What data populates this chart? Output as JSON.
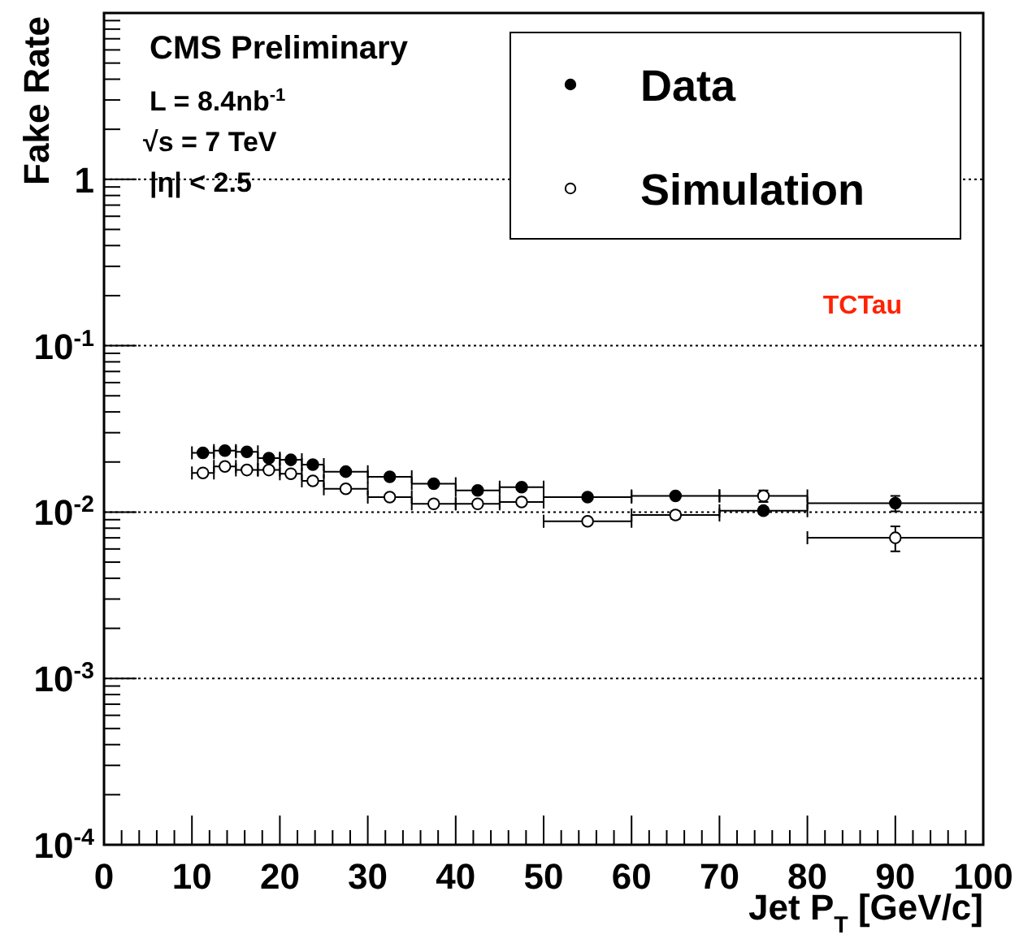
{
  "chart_data": {
    "type": "scatter",
    "xlabel": "Jet P$_{T}$ [GeV/c]",
    "ylabel": "Fake Rate",
    "log": "y",
    "xlim": [
      0,
      100
    ],
    "ylim": [
      0.0001,
      10
    ],
    "xticks": [
      0,
      10,
      20,
      30,
      40,
      50,
      60,
      70,
      80,
      90,
      100
    ],
    "yticks": [
      {
        "value": 0.0001,
        "label": "10$^{-4}$"
      },
      {
        "value": 0.001,
        "label": "10$^{-3}$"
      },
      {
        "value": 0.01,
        "label": "10$^{-2}$"
      },
      {
        "value": 0.1,
        "label": "10$^{-1}$"
      },
      1,
      {
        "value": 10,
        "label": null
      }
    ],
    "grid": "y",
    "legend": "top right",
    "marker": "circle",
    "x": [
      11.25,
      13.75,
      16.25,
      18.75,
      21.25,
      23.75,
      27.5,
      32.5,
      37.5,
      42.5,
      47.5,
      55,
      65,
      75,
      90
    ],
    "series": [
      {
        "name": "Data",
        "color": "#000000",
        "xerrors": [
          1.25,
          1.25,
          1.25,
          1.25,
          1.25,
          1.25,
          2.5,
          2.5,
          2.5,
          2.5,
          2.5,
          5,
          5,
          5,
          10
        ],
        "values": [
          0.0227,
          0.0234,
          0.023,
          0.0211,
          0.0206,
          0.0193,
          0.0175,
          0.0163,
          0.0148,
          0.0135,
          0.0141,
          0.0123,
          0.0125,
          0.0102,
          0.0113
        ],
        "errors": [
          null,
          null,
          null,
          null,
          null,
          null,
          null,
          null,
          null,
          null,
          null,
          null,
          null,
          0.0005,
          0.0012
        ]
      },
      {
        "name": "Simulation",
        "color": "#ffffff",
        "xerrors": [
          1.25,
          1.25,
          1.25,
          1.25,
          1.25,
          1.25,
          2.5,
          2.5,
          2.5,
          2.5,
          2.5,
          5,
          5,
          5,
          10
        ],
        "values": [
          0.0172,
          0.0188,
          0.0179,
          0.0179,
          0.017,
          0.0154,
          0.0138,
          0.0123,
          0.0112,
          0.0112,
          0.0115,
          0.0088,
          0.0096,
          0.0125,
          0.007
        ],
        "errors": [
          null,
          null,
          null,
          null,
          null,
          null,
          null,
          null,
          null,
          null,
          null,
          null,
          0.0005,
          0.001,
          0.0012
        ]
      }
    ],
    "annotations": [
      "CMS Preliminary",
      "L = 8.4nb$^{-1}$",
      "√s = 7 TeV",
      "|η| < 2.5",
      "TCTau"
    ]
  }
}
